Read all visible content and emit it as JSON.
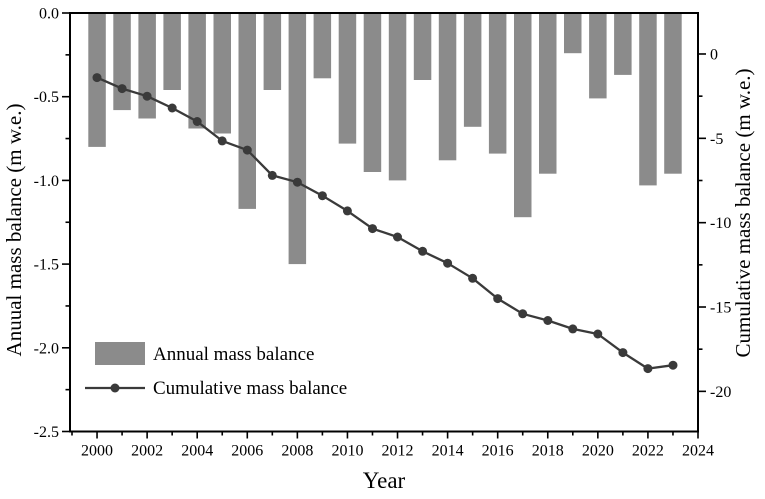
{
  "chart_data": {
    "type": "combo-bar-line",
    "title": "",
    "xlabel": "Year",
    "background": "#ffffff",
    "frame_color": "#000000",
    "x": [
      2000,
      2001,
      2002,
      2003,
      2004,
      2005,
      2006,
      2007,
      2008,
      2009,
      2010,
      2011,
      2012,
      2013,
      2014,
      2015,
      2016,
      2017,
      2018,
      2019,
      2020,
      2021,
      2022,
      2023
    ],
    "series": [
      {
        "name": "Annual mass balance",
        "type": "bar",
        "axis": "left",
        "color": "#8b8b8b",
        "values": [
          -0.8,
          -0.58,
          -0.63,
          -0.46,
          -0.69,
          -0.72,
          -1.17,
          -0.46,
          -1.5,
          -0.39,
          -0.78,
          -0.95,
          -1.0,
          -0.4,
          -0.88,
          -0.68,
          -0.84,
          -1.22,
          -0.96,
          -0.24,
          -0.51,
          -0.37,
          -1.03,
          -0.96
        ]
      },
      {
        "name": "Cumulative mass balance",
        "type": "line",
        "axis": "right",
        "color": "#3a3a3a",
        "values": [
          -1.4,
          -2.05,
          -2.5,
          -3.2,
          -4.0,
          -5.15,
          -5.7,
          -7.2,
          -7.6,
          -8.4,
          -9.3,
          -10.35,
          -10.85,
          -11.7,
          -12.4,
          -13.3,
          -14.5,
          -15.4,
          -15.8,
          -16.3,
          -16.6,
          -17.7,
          -18.65,
          -18.45
        ]
      }
    ],
    "x_axis": {
      "lim": [
        1998.92,
        2024
      ],
      "major_ticks": [
        2000,
        2002,
        2004,
        2006,
        2008,
        2010,
        2012,
        2014,
        2016,
        2018,
        2020,
        2022,
        2024
      ],
      "tick_labels": [
        "2000",
        "2002",
        "2004",
        "2006",
        "2008",
        "2010",
        "2012",
        "2014",
        "2016",
        "2018",
        "2020",
        "2022",
        "2024"
      ],
      "minor_ticks": [
        1999,
        2001,
        2003,
        2005,
        2007,
        2009,
        2011,
        2013,
        2015,
        2017,
        2019,
        2021,
        2023
      ]
    },
    "left_axis": {
      "label": "Anuual mass balance (m w.e.)",
      "lim": [
        -2.5,
        0
      ],
      "major_ticks": [
        0,
        -0.5,
        -1.0,
        -1.5,
        -2.0,
        -2.5
      ],
      "tick_labels": [
        "0.0",
        "-0.5",
        "-1.0",
        "-1.5",
        "-2.0",
        "-2.5"
      ],
      "minor_ticks": [
        -0.25,
        -0.75,
        -1.25,
        -1.75,
        -2.25
      ]
    },
    "right_axis": {
      "label": "Cumulative mass balance (m w.e.)",
      "lim": [
        -22.38,
        2.43
      ],
      "major_ticks": [
        0,
        -5,
        -10,
        -15,
        -20
      ],
      "tick_labels": [
        "0",
        "-5",
        "-10",
        "-15",
        "-20"
      ],
      "minor_ticks": [
        -2.5,
        -7.5,
        -12.5,
        -17.5
      ]
    },
    "legend": {
      "position": "lower-left",
      "entries": [
        "Annual mass balance",
        "Cumulative mass balance"
      ]
    },
    "grid": false,
    "bar_width_years": 0.7,
    "marker": "circle",
    "marker_radius": 4.5
  }
}
